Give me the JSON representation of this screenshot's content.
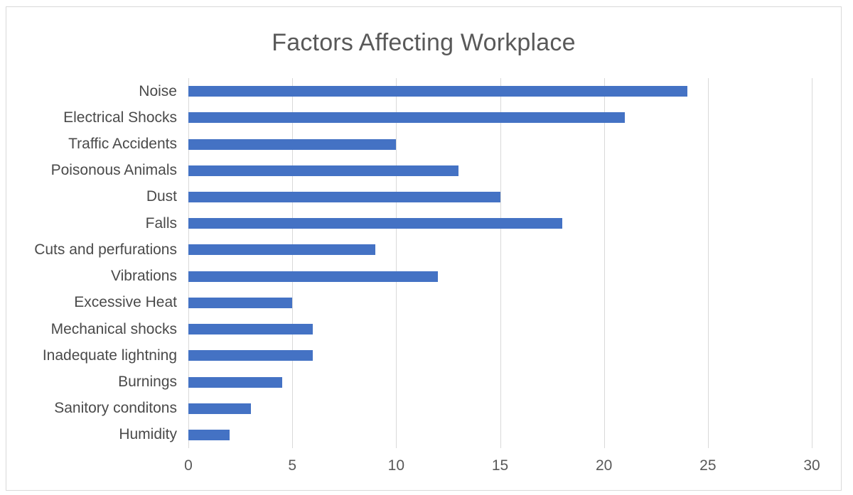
{
  "window": {
    "background_color": "#ffffff",
    "frame_border_color": "#d9d9d9"
  },
  "chart_data": {
    "type": "bar",
    "orientation": "horizontal",
    "title": "Factors Affecting Workplace",
    "categories": [
      "Noise",
      "Electrical Shocks",
      "Traffic Accidents",
      "Poisonous Animals",
      "Dust",
      "Falls",
      "Cuts and perfurations",
      "Vibrations",
      "Excessive Heat",
      "Mechanical shocks",
      "Inadequate lightning",
      "Burnings",
      "Sanitory conditons",
      "Humidity"
    ],
    "values": [
      24,
      21,
      10,
      13,
      15,
      18,
      9,
      12,
      5,
      6,
      6,
      4.5,
      3,
      2
    ],
    "xlabel": "",
    "ylabel": "",
    "xlim": [
      0,
      30
    ],
    "xticks": [
      0,
      5,
      10,
      15,
      20,
      25,
      30
    ],
    "grid": "vertical gridlines on",
    "legend_position": "none",
    "bar_color": "#4472c4",
    "gridline_color": "#d9d9d9",
    "title_color": "#595959",
    "category_label_color": "#4a4a4a",
    "tick_label_color": "#595959"
  }
}
